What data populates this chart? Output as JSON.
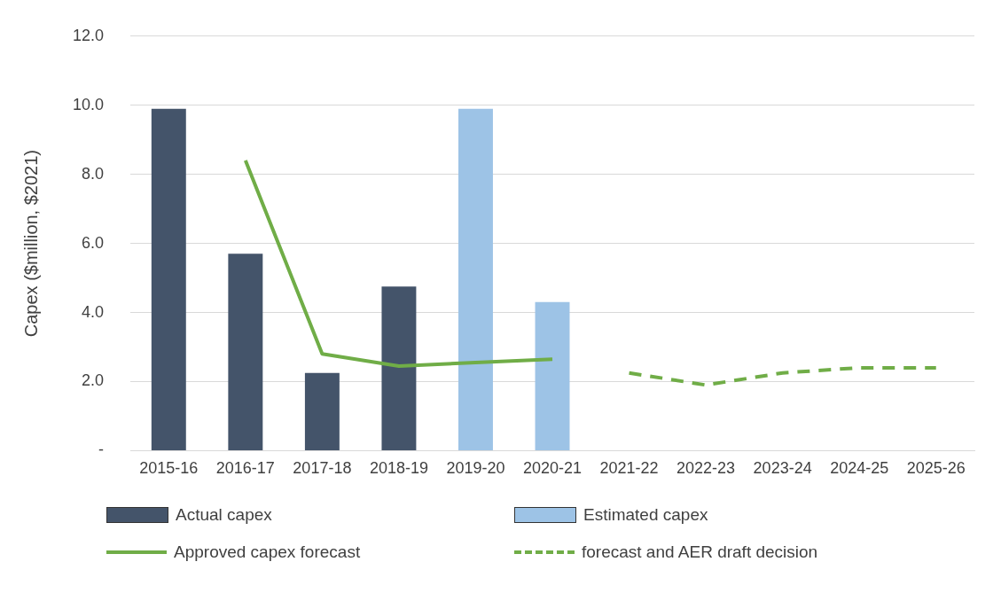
{
  "chart_data": {
    "type": "bar",
    "ylabel": "Capex ($million, $2021)",
    "categories": [
      "2015-16",
      "2016-17",
      "2017-18",
      "2018-19",
      "2019-20",
      "2020-21",
      "2021-22",
      "2022-23",
      "2023-24",
      "2024-25",
      "2025-26"
    ],
    "series": [
      {
        "name": "Actual capex",
        "color": "#44546a",
        "values": [
          9.9,
          5.7,
          2.25,
          4.75,
          null,
          null,
          null,
          null,
          null,
          null,
          null
        ]
      },
      {
        "name": "Estimated capex",
        "color": "#9dc3e6",
        "values": [
          null,
          null,
          null,
          null,
          9.9,
          4.3,
          null,
          null,
          null,
          null,
          null
        ]
      },
      {
        "name": "Approved capex forecast",
        "type": "line",
        "color": "#70ad47",
        "line_style": "solid",
        "values": [
          null,
          8.4,
          2.8,
          2.45,
          2.55,
          2.65,
          null,
          null,
          null,
          null,
          null
        ]
      },
      {
        "name": "forecast and AER draft decision",
        "type": "line",
        "color": "#70ad47",
        "line_style": "dashed",
        "values": [
          null,
          null,
          null,
          null,
          null,
          null,
          2.25,
          1.9,
          2.25,
          2.4,
          2.4
        ]
      }
    ],
    "ylim": [
      0,
      12
    ],
    "yticks": [
      {
        "value": 0,
        "label": "-"
      },
      {
        "value": 2,
        "label": "2.0"
      },
      {
        "value": 4,
        "label": "4.0"
      },
      {
        "value": 6,
        "label": "6.0"
      },
      {
        "value": 8,
        "label": "8.0"
      },
      {
        "value": 10,
        "label": "10.0"
      },
      {
        "value": 12,
        "label": "12.0"
      }
    ],
    "grid": "y",
    "legend": "bottom",
    "marker": "none"
  }
}
